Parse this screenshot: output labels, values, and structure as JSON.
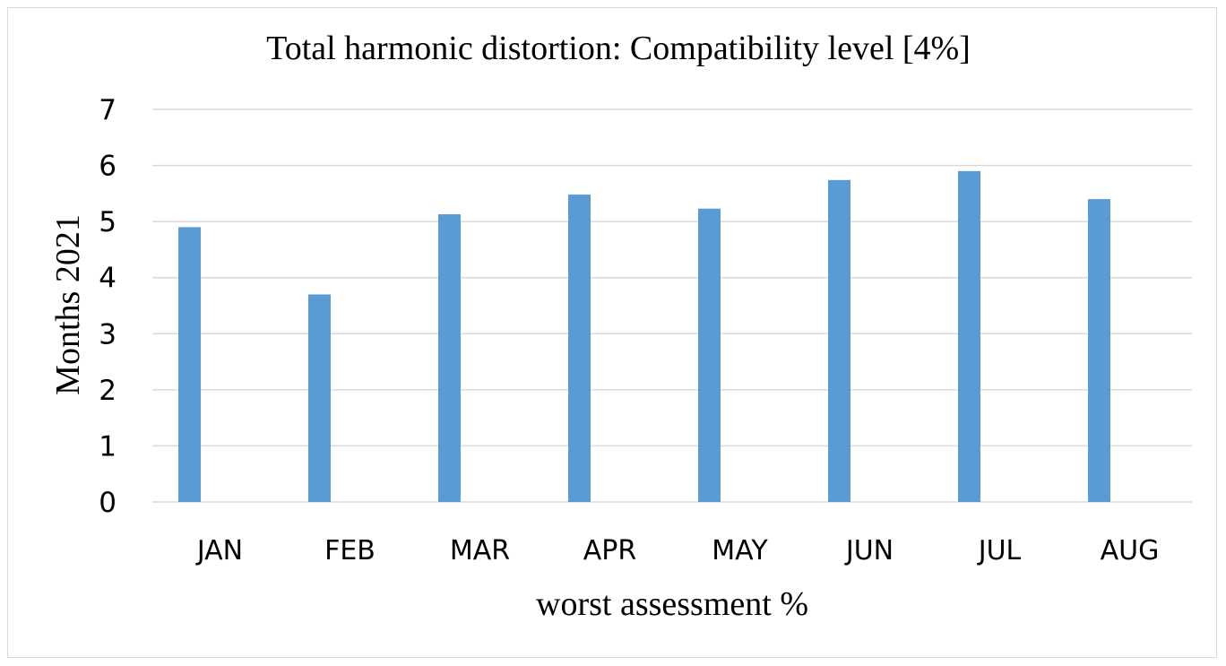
{
  "chart_data": {
    "type": "bar",
    "title": "Total harmonic distortion: Compatibility level [4%]",
    "xlabel": "worst assessment %",
    "ylabel": "Months 2021",
    "categories": [
      "JAN",
      "FEB",
      "MAR",
      "APR",
      "MAY",
      "JUN",
      "JUL",
      "AUG"
    ],
    "values": [
      4.9,
      3.7,
      5.13,
      5.48,
      5.23,
      5.74,
      5.9,
      5.4
    ],
    "ylim": [
      0,
      7
    ],
    "yticks": [
      "0",
      "1",
      "2",
      "3",
      "4",
      "5",
      "6",
      "7"
    ],
    "grid": true,
    "bar_color": "#5b9bd5",
    "grid_color": "#d9d9d9"
  }
}
